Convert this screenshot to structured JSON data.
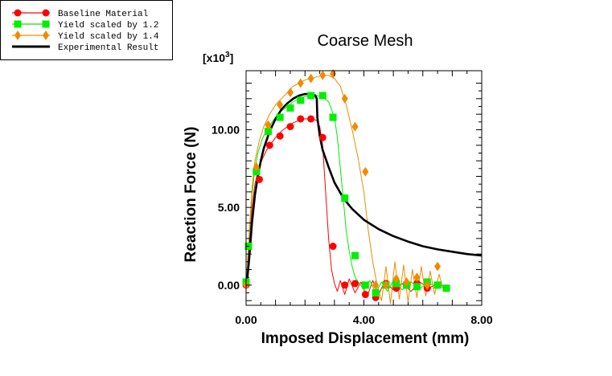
{
  "chart_data": {
    "type": "line",
    "title": "Coarse Mesh",
    "xlabel": "Imposed Displacement (mm)",
    "ylabel": "Reaction Force (N)",
    "y_multiplier_prefix": "[x10",
    "y_multiplier_exp": "3",
    "y_multiplier_suffix": "]",
    "xlim": [
      0,
      8
    ],
    "ylim": [
      -1.3,
      13.8
    ],
    "x_ticks": [
      0,
      4,
      8
    ],
    "x_tick_labels": [
      "0.00",
      "4.00",
      "8.00"
    ],
    "y_ticks": [
      0,
      5,
      10
    ],
    "y_tick_labels": [
      "0.00",
      "5.00",
      "10.00"
    ],
    "legend_position": "top-left, outside plot",
    "series": [
      {
        "name": "Baseline Material",
        "color": "#ff0000",
        "marker": "circle",
        "x": [
          0.0,
          0.1,
          0.2,
          0.3,
          0.4,
          0.55,
          0.7,
          0.85,
          1.0,
          1.2,
          1.4,
          1.6,
          1.8,
          2.0,
          2.2,
          2.4,
          2.5,
          2.6,
          2.7,
          2.8,
          2.9,
          3.0,
          3.1,
          3.2,
          3.35,
          3.5,
          3.7,
          3.9,
          4.1,
          4.3,
          4.5,
          4.7,
          5.0,
          5.3,
          5.6,
          5.9,
          6.2,
          6.5,
          6.8
        ],
        "y": [
          0.0,
          2.6,
          5.0,
          6.5,
          7.3,
          8.1,
          8.7,
          9.1,
          9.5,
          9.9,
          10.2,
          10.45,
          10.6,
          10.7,
          10.72,
          10.6,
          10.2,
          9.0,
          6.0,
          3.0,
          1.0,
          0.1,
          -0.4,
          0.3,
          -0.6,
          0.4,
          -0.5,
          0.2,
          -0.8,
          0.3,
          -0.6,
          0.2,
          -0.3,
          0.1,
          -0.4,
          0.2,
          -0.2,
          0.1,
          -0.2
        ],
        "marker_x": [
          0.0,
          0.45,
          0.8,
          1.15,
          1.5,
          1.85,
          2.2,
          2.6,
          2.95,
          3.35,
          3.7,
          4.05,
          4.4,
          4.75,
          5.1,
          5.45,
          5.8,
          6.15,
          6.5
        ],
        "marker_y": [
          0.0,
          6.8,
          9.0,
          9.6,
          10.2,
          10.7,
          10.7,
          9.5,
          2.5,
          0.0,
          0.1,
          -0.6,
          -0.8,
          0.1,
          -0.2,
          0.0,
          0.1,
          -0.2,
          0.0
        ]
      },
      {
        "name": "Yield scaled by 1.2",
        "color": "#00ee00",
        "marker": "square",
        "x": [
          0.0,
          0.1,
          0.2,
          0.3,
          0.4,
          0.55,
          0.7,
          0.85,
          1.0,
          1.2,
          1.4,
          1.6,
          1.8,
          2.0,
          2.2,
          2.4,
          2.6,
          2.8,
          3.0,
          3.1,
          3.2,
          3.3,
          3.4,
          3.5,
          3.6,
          3.7,
          3.85,
          4.0,
          4.2,
          4.4,
          4.6,
          4.8,
          5.0,
          5.3,
          5.6,
          5.9,
          6.2,
          6.5,
          6.8
        ],
        "y": [
          0.0,
          3.0,
          5.8,
          7.5,
          8.5,
          9.4,
          10.0,
          10.4,
          10.8,
          11.2,
          11.5,
          11.8,
          12.0,
          12.15,
          12.2,
          12.2,
          12.1,
          11.8,
          10.8,
          9.5,
          7.5,
          5.5,
          3.5,
          2.2,
          1.2,
          0.5,
          0.1,
          -0.3,
          0.3,
          -0.5,
          0.2,
          -0.4,
          0.3,
          -0.3,
          0.2,
          -0.2,
          0.1,
          -0.1,
          -0.2
        ],
        "marker_x": [
          0.0,
          0.08,
          0.35,
          0.75,
          1.15,
          1.5,
          1.85,
          2.2,
          2.6,
          2.95,
          3.35,
          3.7,
          4.05,
          4.4,
          4.75,
          5.1,
          5.45,
          5.8,
          6.15,
          6.5,
          6.8
        ],
        "marker_y": [
          0.2,
          2.5,
          7.3,
          9.9,
          10.8,
          11.4,
          11.9,
          12.2,
          12.2,
          10.8,
          5.6,
          1.9,
          0.0,
          -0.5,
          0.0,
          0.1,
          0.0,
          -0.1,
          0.2,
          0.0,
          -0.2
        ]
      },
      {
        "name": "Yield scaled by 1.4",
        "color": "#f08a00",
        "marker": "diamond",
        "x": [
          0.0,
          0.1,
          0.2,
          0.3,
          0.45,
          0.6,
          0.8,
          1.0,
          1.2,
          1.4,
          1.6,
          1.8,
          2.0,
          2.2,
          2.4,
          2.6,
          2.8,
          3.0,
          3.2,
          3.4,
          3.6,
          3.8,
          4.0,
          4.15,
          4.3,
          4.45,
          4.6,
          4.75,
          4.9,
          5.05,
          5.2,
          5.35,
          5.5,
          5.65,
          5.8,
          5.95,
          6.1,
          6.25,
          6.4,
          6.55,
          6.7
        ],
        "y": [
          0.0,
          3.2,
          6.2,
          8.0,
          9.3,
          10.2,
          11.0,
          11.6,
          12.0,
          12.4,
          12.8,
          13.0,
          13.2,
          13.3,
          13.4,
          13.5,
          13.5,
          13.3,
          12.8,
          11.6,
          10.0,
          8.2,
          6.0,
          3.5,
          1.5,
          0.0,
          -1.0,
          1.2,
          -1.2,
          1.5,
          -0.9,
          1.3,
          -1.1,
          1.0,
          -0.8,
          1.2,
          -0.7,
          0.9,
          -0.6,
          0.7,
          -0.3
        ],
        "marker_x": [
          0.0,
          0.35,
          0.75,
          1.15,
          1.5,
          1.85,
          2.2,
          2.6,
          2.95,
          3.35,
          3.7,
          4.05,
          4.4,
          4.75,
          5.1,
          5.45,
          5.8,
          6.15,
          6.5
        ],
        "marker_y": [
          0.0,
          7.6,
          10.3,
          11.6,
          12.4,
          13.0,
          13.3,
          13.5,
          13.6,
          12.0,
          10.2,
          7.3,
          0.0,
          0.0,
          0.4,
          0.2,
          0.5,
          0.0,
          1.2
        ]
      },
      {
        "name": "Experimental Result",
        "color": "#000000",
        "marker": "none",
        "x": [
          0.0,
          0.05,
          0.1,
          0.2,
          0.3,
          0.4,
          0.5,
          0.6,
          0.8,
          1.0,
          1.2,
          1.4,
          1.6,
          1.8,
          2.0,
          2.2,
          2.35,
          2.4,
          2.42,
          2.5,
          2.6,
          2.8,
          3.0,
          3.3,
          3.6,
          4.0,
          4.5,
          5.0,
          5.5,
          6.0,
          6.5,
          7.0,
          7.5,
          8.0
        ],
        "y": [
          0.0,
          0.6,
          1.6,
          4.0,
          5.8,
          7.0,
          8.0,
          8.8,
          9.9,
          10.7,
          11.3,
          11.7,
          12.0,
          12.2,
          12.3,
          12.3,
          12.2,
          12.0,
          10.8,
          9.6,
          8.7,
          7.6,
          6.6,
          5.6,
          4.9,
          4.2,
          3.6,
          3.15,
          2.8,
          2.5,
          2.3,
          2.15,
          2.0,
          1.9
        ]
      }
    ]
  }
}
